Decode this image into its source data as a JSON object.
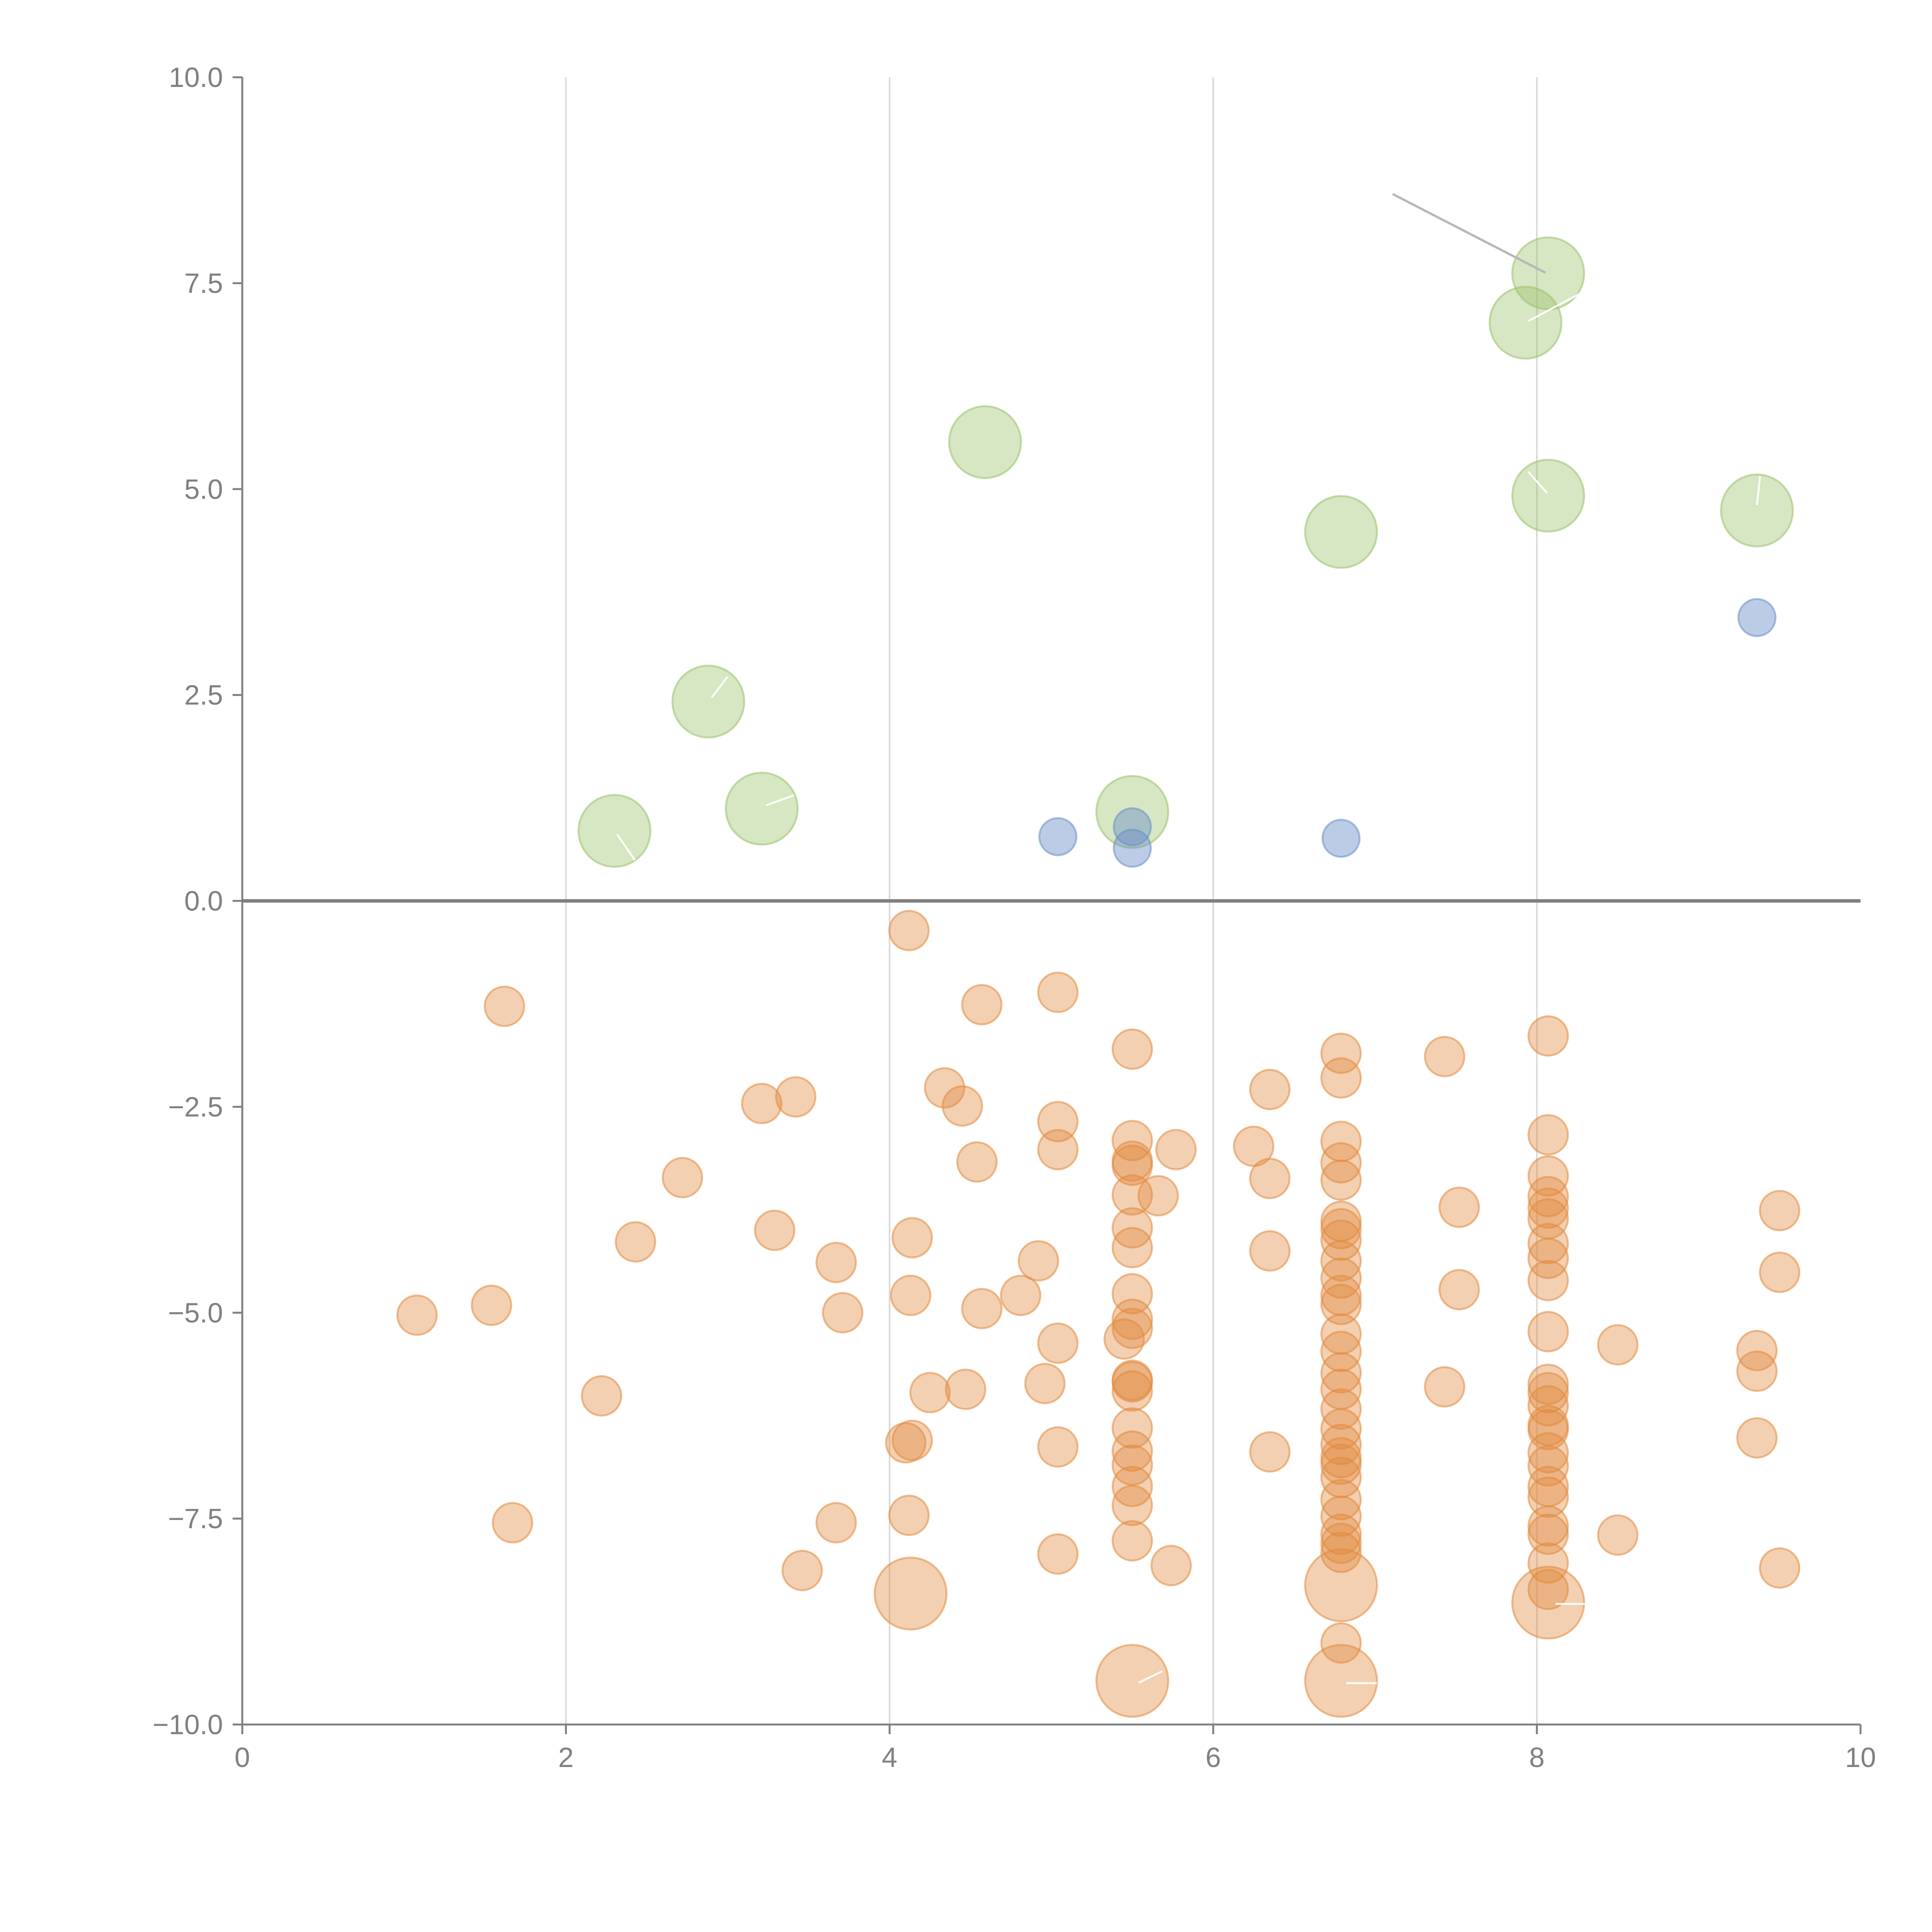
{
  "chart_data": {
    "type": "scatter",
    "title": "",
    "xlabel": "",
    "ylabel": "",
    "xlim": [
      0,
      10
    ],
    "ylim": [
      -10,
      10
    ],
    "grid": "vertical",
    "x_ticks": [
      "0",
      "2",
      "4",
      "6",
      "8",
      "10"
    ],
    "y_ticks": [
      "10.0",
      "7.5",
      "5.0",
      "2.5",
      "0.0",
      "−2.5",
      "−5.0",
      "−7.5",
      "−10.0"
    ],
    "colors": {
      "green": "#9bc169",
      "blue": "#6a8fc9",
      "orange": "#e28a3e",
      "axis": "#808080",
      "grid": "#d8d8d8"
    },
    "series": [
      {
        "name": "green",
        "color": "#9bc169",
        "size": "large",
        "points": [
          [
            2.3,
            0.85
          ],
          [
            2.88,
            2.42
          ],
          [
            3.21,
            1.12
          ],
          [
            4.59,
            5.57
          ],
          [
            5.5,
            1.08
          ],
          [
            6.79,
            4.48
          ],
          [
            7.93,
            7.02
          ],
          [
            8.07,
            7.62
          ],
          [
            8.07,
            4.92
          ],
          [
            9.36,
            4.74
          ]
        ]
      },
      {
        "name": "blue",
        "color": "#6a8fc9",
        "size": "small",
        "points": [
          [
            5.04,
            0.78
          ],
          [
            5.5,
            0.9
          ],
          [
            5.5,
            0.64
          ],
          [
            6.79,
            0.76
          ],
          [
            9.36,
            3.44
          ]
        ]
      },
      {
        "name": "orange",
        "color": "#e28a3e",
        "size": "medium",
        "points": [
          [
            1.08,
            -5.03
          ],
          [
            1.54,
            -4.91
          ],
          [
            1.62,
            -1.28
          ],
          [
            1.67,
            -7.55
          ],
          [
            2.22,
            -6.01
          ],
          [
            2.43,
            -4.14
          ],
          [
            2.72,
            -3.36
          ],
          [
            3.21,
            -2.46
          ],
          [
            3.29,
            -4.0
          ],
          [
            3.42,
            -2.38
          ],
          [
            3.46,
            -8.13
          ],
          [
            3.67,
            -4.39
          ],
          [
            3.67,
            -7.55
          ],
          [
            3.71,
            -5.0
          ],
          [
            4.1,
            -6.58
          ],
          [
            4.12,
            -0.36
          ],
          [
            4.12,
            -7.46
          ],
          [
            4.13,
            -4.79
          ],
          [
            4.14,
            -6.55
          ],
          [
            4.14,
            -4.09
          ],
          [
            4.25,
            -5.97
          ],
          [
            4.34,
            -2.27
          ],
          [
            4.45,
            -2.49
          ],
          [
            4.47,
            -5.93
          ],
          [
            4.54,
            -3.17
          ],
          [
            4.57,
            -1.26
          ],
          [
            4.57,
            -4.95
          ],
          [
            4.81,
            -4.79
          ],
          [
            4.92,
            -4.37
          ],
          [
            4.96,
            -5.86
          ],
          [
            5.04,
            -1.11
          ],
          [
            5.04,
            -2.68
          ],
          [
            5.04,
            -3.02
          ],
          [
            5.04,
            -5.37
          ],
          [
            5.04,
            -6.63
          ],
          [
            5.04,
            -7.93
          ],
          [
            5.45,
            -5.32
          ],
          [
            5.5,
            -1.8
          ],
          [
            5.5,
            -2.91
          ],
          [
            5.5,
            -3.16
          ],
          [
            5.5,
            -3.21
          ],
          [
            5.5,
            -3.57
          ],
          [
            5.5,
            -3.97
          ],
          [
            5.5,
            -4.21
          ],
          [
            5.5,
            -4.77
          ],
          [
            5.5,
            -5.08
          ],
          [
            5.5,
            -5.19
          ],
          [
            5.5,
            -5.82
          ],
          [
            5.5,
            -5.84
          ],
          [
            5.5,
            -5.95
          ],
          [
            5.5,
            -6.4
          ],
          [
            5.5,
            -6.68
          ],
          [
            5.5,
            -6.85
          ],
          [
            5.5,
            -7.11
          ],
          [
            5.5,
            -7.34
          ],
          [
            5.5,
            -7.77
          ],
          [
            5.66,
            -3.58
          ],
          [
            5.74,
            -8.07
          ],
          [
            5.77,
            -3.02
          ],
          [
            6.25,
            -2.98
          ],
          [
            6.35,
            -2.29
          ],
          [
            6.35,
            -3.37
          ],
          [
            6.35,
            -4.25
          ],
          [
            6.35,
            -6.69
          ],
          [
            6.79,
            -1.85
          ],
          [
            6.79,
            -2.15
          ],
          [
            6.79,
            -2.92
          ],
          [
            6.79,
            -3.18
          ],
          [
            6.79,
            -3.39
          ],
          [
            6.79,
            -3.89
          ],
          [
            6.79,
            -3.98
          ],
          [
            6.79,
            -4.12
          ],
          [
            6.79,
            -4.37
          ],
          [
            6.79,
            -4.58
          ],
          [
            6.79,
            -4.79
          ],
          [
            6.79,
            -4.9
          ],
          [
            6.79,
            -5.26
          ],
          [
            6.79,
            -5.47
          ],
          [
            6.79,
            -5.73
          ],
          [
            6.79,
            -5.93
          ],
          [
            6.79,
            -6.17
          ],
          [
            6.79,
            -6.41
          ],
          [
            6.79,
            -6.6
          ],
          [
            6.79,
            -6.76
          ],
          [
            6.79,
            -6.84
          ],
          [
            6.79,
            -7.0
          ],
          [
            6.79,
            -7.27
          ],
          [
            6.79,
            -7.47
          ],
          [
            6.79,
            -7.69
          ],
          [
            6.79,
            -7.8
          ],
          [
            6.79,
            -7.91
          ],
          [
            6.79,
            -9.01
          ],
          [
            7.43,
            -1.89
          ],
          [
            7.43,
            -5.9
          ],
          [
            7.52,
            -3.72
          ],
          [
            7.52,
            -4.72
          ],
          [
            8.07,
            -1.64
          ],
          [
            8.07,
            -2.84
          ],
          [
            8.07,
            -3.34
          ],
          [
            8.07,
            -3.59
          ],
          [
            8.07,
            -3.73
          ],
          [
            8.07,
            -3.86
          ],
          [
            8.07,
            -4.16
          ],
          [
            8.07,
            -4.34
          ],
          [
            8.07,
            -4.61
          ],
          [
            8.07,
            -5.23
          ],
          [
            8.07,
            -5.87
          ],
          [
            8.07,
            -5.97
          ],
          [
            8.07,
            -6.13
          ],
          [
            8.07,
            -6.37
          ],
          [
            8.07,
            -6.42
          ],
          [
            8.07,
            -6.7
          ],
          [
            8.07,
            -6.86
          ],
          [
            8.07,
            -7.11
          ],
          [
            8.07,
            -7.24
          ],
          [
            8.07,
            -7.59
          ],
          [
            8.07,
            -7.69
          ],
          [
            8.07,
            -8.04
          ],
          [
            8.07,
            -8.36
          ],
          [
            8.5,
            -5.39
          ],
          [
            8.5,
            -7.7
          ],
          [
            9.36,
            -5.46
          ],
          [
            9.36,
            -5.71
          ],
          [
            9.36,
            -6.52
          ],
          [
            9.5,
            -3.76
          ],
          [
            9.5,
            -4.51
          ],
          [
            9.5,
            -8.1
          ]
        ]
      },
      {
        "name": "orange-large",
        "color": "#e28a3e",
        "size": "large",
        "points": [
          [
            4.13,
            -8.41
          ],
          [
            5.5,
            -9.47
          ],
          [
            6.79,
            -8.31
          ],
          [
            6.79,
            -9.47
          ],
          [
            8.07,
            -8.52
          ]
        ]
      }
    ]
  }
}
